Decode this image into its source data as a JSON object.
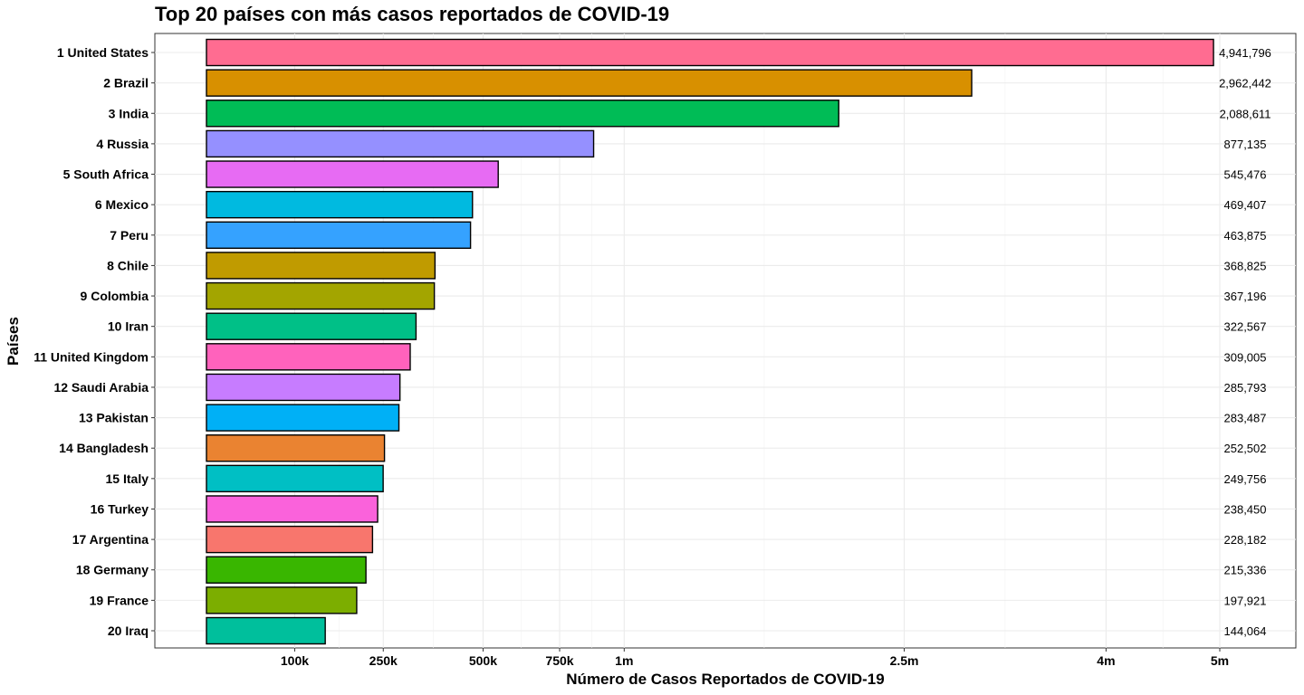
{
  "chart_data": {
    "type": "bar",
    "orientation": "horizontal",
    "title": "Top 20 países con más casos reportados de COVID-19",
    "xlabel": "Número de Casos Reportados de COVID-19",
    "ylabel": "Países",
    "x_axis_scale": "sqrt",
    "xlim": [
      0,
      5220000
    ],
    "xticks": [
      {
        "value": 100000,
        "label": "100k"
      },
      {
        "value": 250000,
        "label": "250k"
      },
      {
        "value": 500000,
        "label": "500k"
      },
      {
        "value": 750000,
        "label": "750k"
      },
      {
        "value": 1000000,
        "label": "1m"
      },
      {
        "value": 2500000,
        "label": "2.5m"
      },
      {
        "value": 4000000,
        "label": "4m"
      },
      {
        "value": 5000000,
        "label": "5m"
      }
    ],
    "grid": true,
    "legend": "none",
    "categories": [
      "1 United States",
      "2 Brazil",
      "3 India",
      "4 Russia",
      "5 South Africa",
      "6 Mexico",
      "7 Peru",
      "8 Chile",
      "9 Colombia",
      "10 Iran",
      "11 United Kingdom",
      "12 Saudi Arabia",
      "13 Pakistan",
      "14 Bangladesh",
      "15 Italy",
      "16 Turkey",
      "17 Argentina",
      "18 Germany",
      "19 France",
      "20 Iraq"
    ],
    "values": [
      4941796,
      2962442,
      2088611,
      877135,
      545476,
      469407,
      463875,
      368825,
      367196,
      322567,
      309005,
      285793,
      283487,
      252502,
      249756,
      238450,
      228182,
      215336,
      197921,
      144064
    ],
    "value_labels": [
      "4,941,796",
      "2,962,442",
      "2,088,611",
      "877,135",
      "545,476",
      "469,407",
      "463,875",
      "368,825",
      "367,196",
      "322,567",
      "309,005",
      "285,793",
      "283,487",
      "252,502",
      "249,756",
      "238,450",
      "228,182",
      "215,336",
      "197,921",
      "144,064"
    ],
    "colors": [
      "#FF6C91",
      "#D89000",
      "#00BC56",
      "#9590FF",
      "#E76BF3",
      "#00BAE0",
      "#35A2FF",
      "#C09B00",
      "#A3A500",
      "#00C087",
      "#FF62BC",
      "#C77CFF",
      "#00B0F6",
      "#EA8331",
      "#00BFC4",
      "#FA62DB",
      "#F8766D",
      "#39B600",
      "#7CAE00",
      "#00BF9C"
    ]
  }
}
